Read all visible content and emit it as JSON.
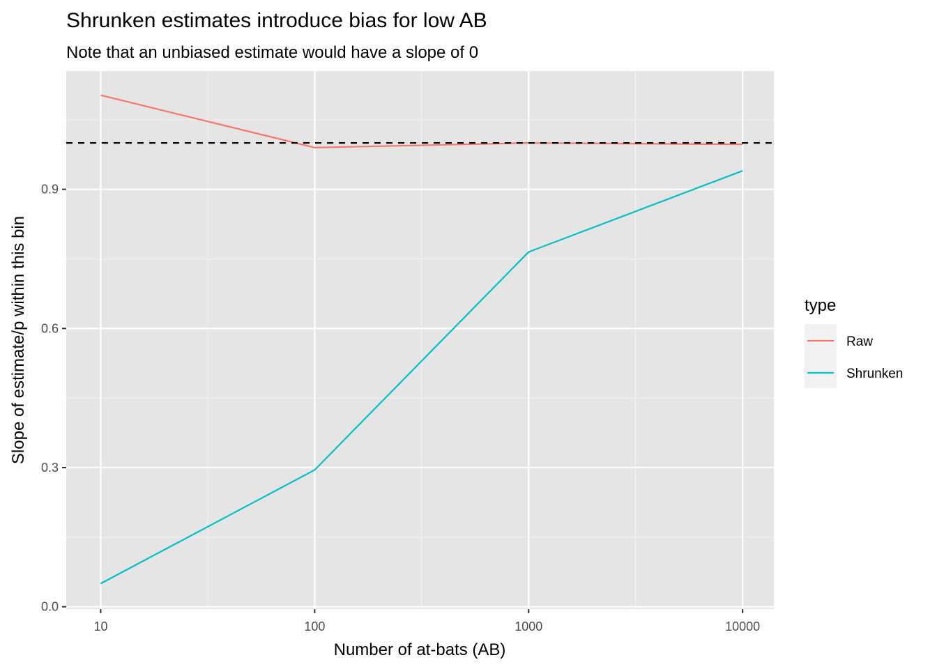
{
  "chart_data": {
    "type": "line",
    "title": "Shrunken estimates introduce bias for low AB",
    "subtitle": "Note that an unbiased estimate would have a slope of 0",
    "xlabel": "Number of at-bats (AB)",
    "ylabel": "Slope of estimate/p within this bin",
    "x_scale": "log10",
    "x_ticks": [
      10,
      100,
      1000,
      10000
    ],
    "x_tick_labels": [
      "10",
      "100",
      "1000",
      "10000"
    ],
    "xlim": [
      6.9,
      14000
    ],
    "y_ticks": [
      0.0,
      0.3,
      0.6,
      0.9
    ],
    "y_tick_labels": [
      "0.0",
      "0.3",
      "0.6",
      "0.9"
    ],
    "ylim": [
      -0.005,
      1.155
    ],
    "grid": true,
    "reference_line": {
      "y": 1.0,
      "style": "dashed",
      "color": "#000000"
    },
    "x": [
      10,
      100,
      1000,
      10000
    ],
    "series": [
      {
        "name": "Raw",
        "color": "#F8766D",
        "values": [
          1.103,
          0.99,
          1.0,
          0.997
        ]
      },
      {
        "name": "Shrunken",
        "color": "#00BFC4",
        "values": [
          0.05,
          0.295,
          0.765,
          0.94
        ]
      }
    ],
    "legend": {
      "title": "type",
      "position": "right"
    }
  }
}
